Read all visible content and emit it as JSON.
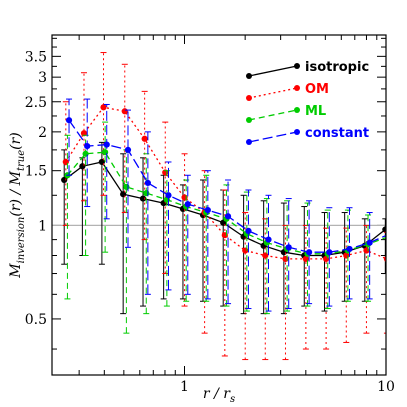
{
  "chart_data": {
    "type": "line",
    "xlabel": "r / r_s",
    "ylabel": "M_inversion(r) / M_true(r)",
    "xscale": "log",
    "yscale": "log",
    "xlim": [
      0.22,
      10
    ],
    "ylim": [
      0.33,
      4.1
    ],
    "reference_line": 1,
    "x_ticks": [
      {
        "v": 1,
        "label": "1"
      },
      {
        "v": 10,
        "label": "10"
      }
    ],
    "y_ticks": [
      {
        "v": 0.5,
        "label": "0.5"
      },
      {
        "v": 1,
        "label": "1"
      },
      {
        "v": 1.5,
        "label": "1.5"
      },
      {
        "v": 2,
        "label": "2"
      },
      {
        "v": 2.5,
        "label": "2.5"
      },
      {
        "v": 3,
        "label": "3"
      },
      {
        "v": 3.5,
        "label": "3.5"
      }
    ],
    "legend_position": "top-right",
    "series": [
      {
        "name": "isotropic",
        "color": "#000000",
        "dash": "solid",
        "offset": -0.012,
        "x": [
          0.26,
          0.32,
          0.4,
          0.51,
          0.64,
          0.81,
          1.01,
          1.27,
          1.6,
          2.02,
          2.54,
          3.2,
          4.04,
          5.09,
          6.41,
          8.07,
          10.2
        ],
        "y": [
          1.4,
          1.55,
          1.6,
          1.26,
          1.22,
          1.18,
          1.13,
          1.08,
          1.02,
          0.92,
          0.86,
          0.82,
          0.8,
          0.8,
          0.82,
          0.86,
          0.97
        ],
        "lo": [
          0.75,
          0.8,
          0.75,
          0.52,
          0.55,
          0.58,
          0.58,
          0.57,
          0.55,
          0.52,
          0.52,
          0.52,
          0.55,
          0.53,
          0.57,
          0.57,
          0.7
        ],
        "hi": [
          1.75,
          1.65,
          1.85,
          1.7,
          1.65,
          1.45,
          1.35,
          1.4,
          1.3,
          1.25,
          1.2,
          1.18,
          1.15,
          1.1,
          1.1,
          1.05,
          1.05
        ]
      },
      {
        "name": "OM",
        "color": "#ff0000",
        "dash": "2,3",
        "offset": -0.004,
        "x": [
          0.26,
          0.32,
          0.4,
          0.51,
          0.64,
          0.81,
          1.01,
          1.27,
          1.6,
          2.02,
          2.54,
          3.2,
          4.04,
          5.09,
          6.41,
          8.07,
          10.2
        ],
        "y": [
          1.6,
          1.98,
          2.4,
          2.33,
          1.9,
          1.48,
          1.23,
          1.1,
          0.93,
          0.83,
          0.8,
          0.78,
          0.78,
          0.78,
          0.8,
          0.83,
          0.78
        ],
        "lo": [
          1.0,
          1.2,
          1.25,
          1.1,
          0.9,
          0.7,
          0.55,
          0.45,
          0.38,
          0.37,
          0.37,
          0.37,
          0.4,
          0.4,
          0.42,
          0.45,
          0.45
        ],
        "hi": [
          2.5,
          3.1,
          3.6,
          3.3,
          2.7,
          2.15,
          1.7,
          1.5,
          1.3,
          1.1,
          1.05,
          1.0,
          1.0,
          0.98,
          0.98,
          1.0,
          0.95
        ]
      },
      {
        "name": "ML",
        "color": "#00cc00",
        "dash": "6,4",
        "offset": 0.004,
        "x": [
          0.26,
          0.32,
          0.4,
          0.51,
          0.64,
          0.81,
          1.01,
          1.27,
          1.6,
          2.02,
          2.54,
          3.2,
          4.04,
          5.09,
          6.41,
          8.07,
          10.2
        ],
        "y": [
          1.45,
          1.7,
          1.72,
          1.33,
          1.27,
          1.21,
          1.15,
          1.1,
          1.05,
          0.94,
          0.88,
          0.84,
          0.81,
          0.81,
          0.83,
          0.87,
          0.92
        ],
        "lo": [
          0.58,
          0.8,
          0.82,
          0.45,
          0.52,
          0.55,
          0.57,
          0.57,
          0.55,
          0.53,
          0.52,
          0.53,
          0.55,
          0.54,
          0.57,
          0.57,
          0.68
        ],
        "hi": [
          1.95,
          1.95,
          2.15,
          1.75,
          1.7,
          1.5,
          1.4,
          1.45,
          1.35,
          1.28,
          1.22,
          1.2,
          1.18,
          1.12,
          1.12,
          1.08,
          1.05
        ]
      },
      {
        "name": "constant",
        "color": "#0000ff",
        "dash": "10,4",
        "offset": 0.012,
        "x": [
          0.26,
          0.32,
          0.4,
          0.51,
          0.64,
          0.81,
          1.01,
          1.27,
          1.6,
          2.02,
          2.54,
          3.2,
          4.04,
          5.09,
          6.41,
          8.07,
          10.2
        ],
        "y": [
          2.18,
          1.8,
          1.82,
          1.75,
          1.37,
          1.25,
          1.17,
          1.12,
          1.07,
          0.96,
          0.9,
          0.85,
          0.82,
          0.82,
          0.84,
          0.88,
          0.94
        ],
        "lo": [
          1.45,
          1.15,
          1.05,
          0.85,
          0.6,
          0.62,
          0.6,
          0.58,
          0.56,
          0.54,
          0.53,
          0.54,
          0.56,
          0.55,
          0.58,
          0.58,
          0.7
        ],
        "hi": [
          2.55,
          2.55,
          2.45,
          2.35,
          2.0,
          1.6,
          1.45,
          1.5,
          1.4,
          1.3,
          1.25,
          1.22,
          1.2,
          1.14,
          1.14,
          1.1,
          1.07
        ]
      }
    ]
  }
}
